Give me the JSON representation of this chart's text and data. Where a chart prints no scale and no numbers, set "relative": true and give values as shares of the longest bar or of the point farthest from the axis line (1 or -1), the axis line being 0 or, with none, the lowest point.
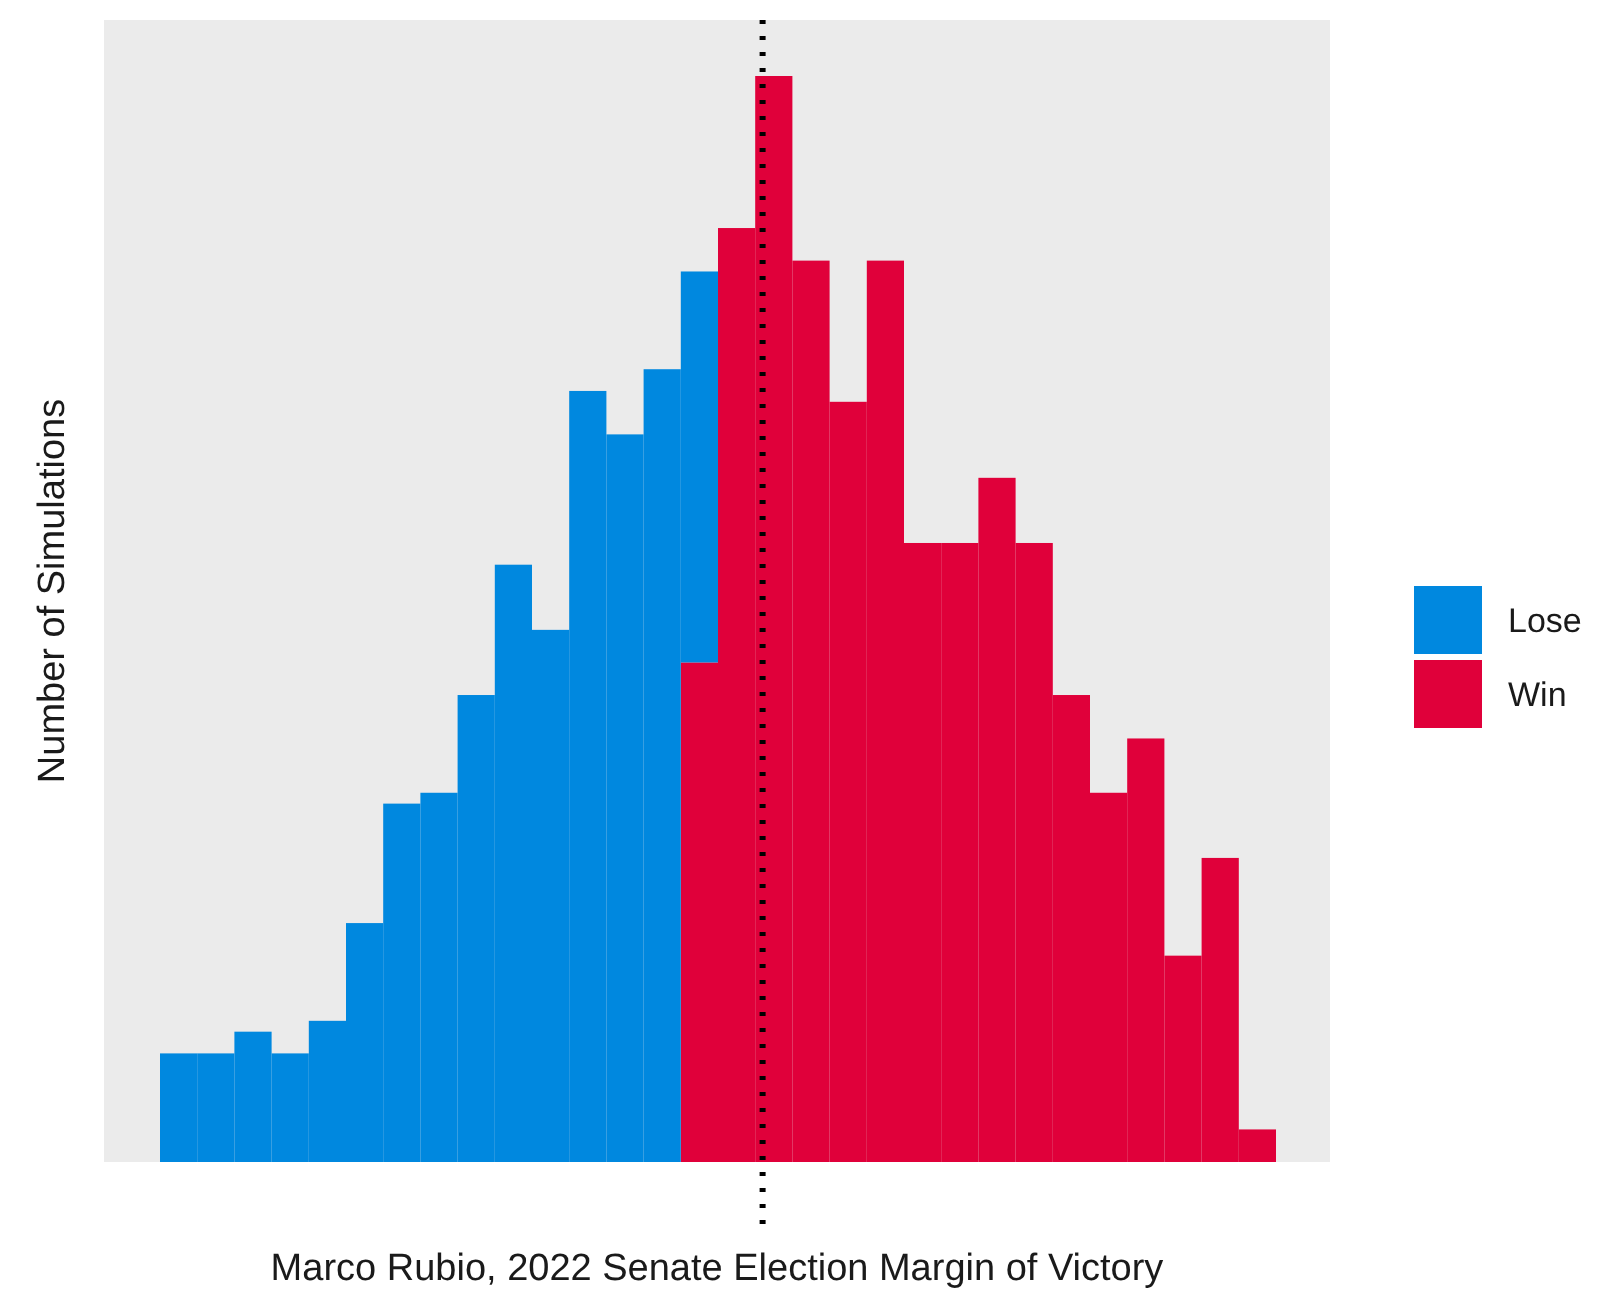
{
  "chart_data": {
    "type": "bar",
    "stacked": true,
    "relative": true,
    "xlabel": "Marco Rubio, 2022 Senate Election Margin of Victory",
    "ylabel": "Number of Simulations",
    "legend": "right",
    "categories": [
      null,
      null,
      null,
      null,
      null,
      null,
      null,
      null,
      null,
      null,
      null,
      null,
      null,
      null,
      null,
      null,
      null,
      null,
      null,
      null,
      null,
      null,
      null,
      null,
      null,
      null,
      null,
      null,
      null,
      null
    ],
    "series": [
      {
        "name": "Win",
        "color": "#e0003a",
        "values": [
          null,
          null,
          null,
          null,
          null,
          null,
          null,
          null,
          null,
          null,
          null,
          null,
          null,
          null,
          0.46,
          0.86,
          1.0,
          0.83,
          0.7,
          0.83,
          0.57,
          0.57,
          0.63,
          0.57,
          0.43,
          0.34,
          0.39,
          0.19,
          0.28,
          0.03
        ]
      },
      {
        "name": "Lose",
        "color": "#0088df",
        "values": [
          0.1,
          0.1,
          0.12,
          0.1,
          0.13,
          0.22,
          0.33,
          0.34,
          0.43,
          0.55,
          0.49,
          0.71,
          0.67,
          0.73,
          0.36,
          null,
          null,
          null,
          null,
          null,
          null,
          null,
          null,
          null,
          null,
          null,
          null,
          null,
          null,
          null
        ]
      }
    ]
  }
}
